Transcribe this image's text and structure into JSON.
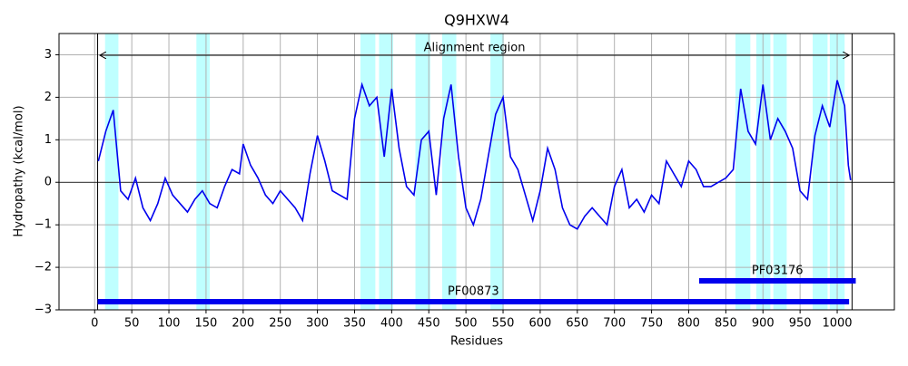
{
  "chart_data": {
    "type": "line",
    "title": "Q9HXW4",
    "x_label": "Residues",
    "y_label": "Hydropathy (kcal/mol)",
    "xlim": [
      -48,
      1077
    ],
    "ylim": [
      -3,
      3.5
    ],
    "xticks": [
      0,
      50,
      100,
      150,
      200,
      250,
      300,
      350,
      400,
      450,
      500,
      550,
      600,
      650,
      700,
      750,
      800,
      850,
      900,
      950,
      1000
    ],
    "yticks": [
      {
        "value": -3,
        "label": "−3"
      },
      {
        "value": -2,
        "label": "−2"
      },
      {
        "value": -1,
        "label": "−1"
      },
      0,
      1,
      2,
      3
    ],
    "grid": true,
    "x": [
      5,
      15,
      25,
      35,
      45,
      55,
      65,
      75,
      85,
      95,
      105,
      115,
      125,
      135,
      145,
      155,
      165,
      175,
      185,
      195,
      200,
      210,
      220,
      230,
      240,
      250,
      260,
      270,
      280,
      290,
      300,
      310,
      320,
      330,
      340,
      350,
      360,
      370,
      380,
      390,
      400,
      410,
      420,
      430,
      440,
      450,
      460,
      470,
      480,
      490,
      500,
      510,
      520,
      530,
      540,
      550,
      560,
      570,
      580,
      590,
      600,
      610,
      620,
      630,
      640,
      650,
      660,
      670,
      680,
      690,
      700,
      710,
      720,
      730,
      740,
      750,
      760,
      770,
      780,
      790,
      800,
      810,
      820,
      830,
      840,
      850,
      860,
      870,
      880,
      890,
      900,
      910,
      920,
      930,
      940,
      950,
      960,
      970,
      980,
      990,
      1000,
      1010,
      1015,
      1018
    ],
    "series": [
      {
        "color": "#0000ee",
        "values": [
          0.5,
          1.2,
          1.7,
          -0.2,
          -0.4,
          0.1,
          -0.6,
          -0.9,
          -0.5,
          0.1,
          -0.3,
          -0.5,
          -0.7,
          -0.4,
          -0.2,
          -0.5,
          -0.6,
          -0.1,
          0.3,
          0.2,
          0.9,
          0.4,
          0.1,
          -0.3,
          -0.5,
          -0.2,
          -0.4,
          -0.6,
          -0.9,
          0.2,
          1.1,
          0.5,
          -0.2,
          -0.3,
          -0.4,
          1.5,
          2.3,
          1.8,
          2.0,
          0.6,
          2.2,
          0.8,
          -0.1,
          -0.3,
          1.0,
          1.2,
          -0.3,
          1.5,
          2.3,
          0.6,
          -0.6,
          -1.0,
          -0.4,
          0.6,
          1.6,
          2.0,
          0.6,
          0.3,
          -0.3,
          -0.9,
          -0.2,
          0.8,
          0.3,
          -0.6,
          -1.0,
          -1.1,
          -0.8,
          -0.6,
          -0.8,
          -1.0,
          -0.1,
          0.3,
          -0.6,
          -0.4,
          -0.7,
          -0.3,
          -0.5,
          0.5,
          0.2,
          -0.1,
          0.5,
          0.3,
          -0.1,
          -0.1,
          0.0,
          0.1,
          0.3,
          2.2,
          1.2,
          0.9,
          2.3,
          1.0,
          1.5,
          1.2,
          0.8,
          -0.2,
          -0.4,
          1.1,
          1.8,
          1.3,
          2.4,
          1.8,
          0.4,
          0.05
        ]
      }
    ],
    "highlight_color": "#bfffff",
    "highlight_regions": [
      [
        14,
        32
      ],
      [
        137,
        155
      ],
      [
        358,
        378
      ],
      [
        383,
        402
      ],
      [
        432,
        452
      ],
      [
        468,
        487
      ],
      [
        533,
        551
      ],
      [
        863,
        883
      ],
      [
        891,
        910
      ],
      [
        914,
        932
      ],
      [
        967,
        987
      ],
      [
        990,
        1010
      ]
    ],
    "boundaries": [
      4,
      1020
    ],
    "alignment_region": {
      "label": "Alignment region",
      "start": 7,
      "end": 1016
    },
    "domain_color": "#0000ee",
    "domains": [
      {
        "name": "PF00873",
        "start": 4,
        "end": 1016
      },
      {
        "name": "PF03176",
        "start": 814,
        "end": 1025
      }
    ]
  }
}
